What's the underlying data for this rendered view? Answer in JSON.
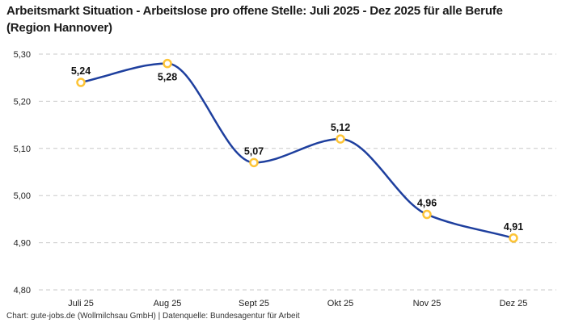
{
  "title": "Arbeitsmarkt Situation - Arbeitslose pro offene Stelle: Juli 2025 - Dez 2025 für alle Berufe (Region Hannover)",
  "footer": "Chart: gute-jobs.de (Wollmilchsau GmbH) | Datenquelle: Bundesagentur für Arbeit",
  "colors": {
    "line": "#1e3f9e",
    "marker_ring": "#fdc436",
    "marker_fill": "#ffffff",
    "gridline": "#c9c9c9",
    "title_text": "#1a1a1a",
    "label_text": "#111111"
  },
  "chart_data": {
    "type": "line",
    "title": "Arbeitsmarkt Situation - Arbeitslose pro offene Stelle: Juli 2025 - Dez 2025 für alle Berufe (Region Hannover)",
    "categories": [
      "Juli 25",
      "Aug 25",
      "Sept 25",
      "Okt 25",
      "Nov 25",
      "Dez 25"
    ],
    "values": [
      5.24,
      5.28,
      5.07,
      5.12,
      4.96,
      4.91
    ],
    "value_labels": [
      "5,24",
      "5,28",
      "5,07",
      "5,12",
      "4,96",
      "4,91"
    ],
    "label_positions": [
      "above",
      "below",
      "above",
      "above",
      "above",
      "above"
    ],
    "xlabel": "",
    "ylabel": "",
    "ylim": [
      4.8,
      5.3
    ],
    "yticks": [
      5.3,
      5.2,
      5.1,
      5.0,
      4.9,
      4.8
    ],
    "ytick_labels": [
      "5,30",
      "5,20",
      "5,10",
      "5,00",
      "4,90",
      "4,80"
    ],
    "grid": "horizontal-dashed",
    "legend": "none",
    "line_style": "smooth-monotone",
    "marker_style": "open-circle"
  }
}
